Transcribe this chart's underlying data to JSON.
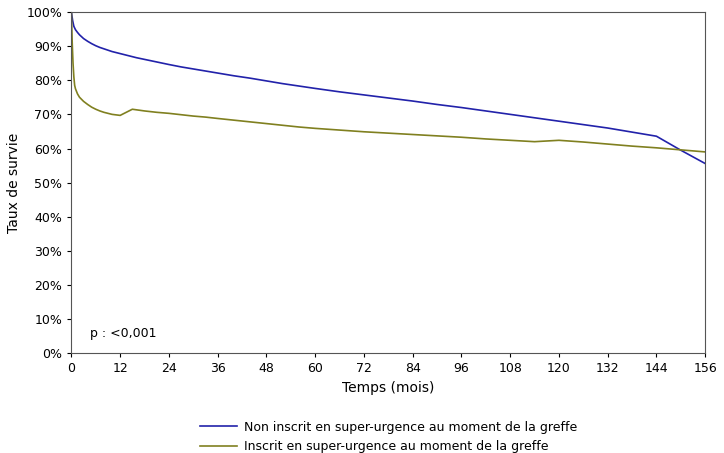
{
  "title": "",
  "xlabel": "Temps (mois)",
  "ylabel": "Taux de survie",
  "xlim": [
    0,
    156
  ],
  "ylim": [
    0,
    1.0
  ],
  "xticks": [
    0,
    12,
    24,
    36,
    48,
    60,
    72,
    84,
    96,
    108,
    120,
    132,
    144,
    156
  ],
  "yticks": [
    0.0,
    0.1,
    0.2,
    0.3,
    0.4,
    0.5,
    0.6,
    0.7,
    0.8,
    0.9,
    1.0
  ],
  "pvalue_text": "p : <0,001",
  "line1_color": "#2222aa",
  "line2_color": "#808020",
  "line1_label": "Non inscrit en super-urgence au moment de la greffe",
  "line2_label": "Inscrit en super-urgence au moment de la greffe",
  "line1_x": [
    0,
    0.3,
    0.6,
    1,
    1.5,
    2,
    3,
    4,
    5,
    6,
    7,
    8,
    9,
    10,
    11,
    12,
    14,
    16,
    18,
    20,
    22,
    24,
    27,
    30,
    33,
    36,
    40,
    44,
    48,
    52,
    56,
    60,
    66,
    72,
    78,
    84,
    90,
    96,
    102,
    108,
    114,
    120,
    126,
    132,
    138,
    144,
    150,
    156
  ],
  "line1_y": [
    1.0,
    0.975,
    0.958,
    0.948,
    0.94,
    0.933,
    0.922,
    0.914,
    0.907,
    0.901,
    0.896,
    0.892,
    0.888,
    0.884,
    0.881,
    0.878,
    0.872,
    0.866,
    0.861,
    0.856,
    0.851,
    0.846,
    0.839,
    0.833,
    0.827,
    0.821,
    0.813,
    0.806,
    0.798,
    0.79,
    0.783,
    0.776,
    0.766,
    0.757,
    0.748,
    0.739,
    0.729,
    0.72,
    0.71,
    0.7,
    0.69,
    0.68,
    0.67,
    0.66,
    0.648,
    0.636,
    0.595,
    0.556
  ],
  "line2_x": [
    0,
    0.2,
    0.4,
    0.6,
    0.8,
    1,
    1.5,
    2,
    3,
    4,
    5,
    6,
    7,
    8,
    9,
    10,
    12,
    15,
    18,
    21,
    24,
    27,
    30,
    33,
    36,
    40,
    44,
    48,
    52,
    56,
    60,
    66,
    72,
    78,
    84,
    90,
    96,
    102,
    108,
    114,
    120,
    126,
    132,
    138,
    144,
    150,
    156
  ],
  "line2_y": [
    1.0,
    0.91,
    0.85,
    0.81,
    0.785,
    0.775,
    0.76,
    0.75,
    0.738,
    0.729,
    0.721,
    0.715,
    0.71,
    0.706,
    0.703,
    0.7,
    0.697,
    0.715,
    0.71,
    0.706,
    0.703,
    0.699,
    0.695,
    0.692,
    0.688,
    0.683,
    0.678,
    0.673,
    0.668,
    0.663,
    0.659,
    0.654,
    0.649,
    0.645,
    0.641,
    0.637,
    0.633,
    0.628,
    0.624,
    0.62,
    0.624,
    0.619,
    0.613,
    0.607,
    0.602,
    0.596,
    0.59
  ],
  "background_color": "#ffffff",
  "linewidth": 1.2
}
